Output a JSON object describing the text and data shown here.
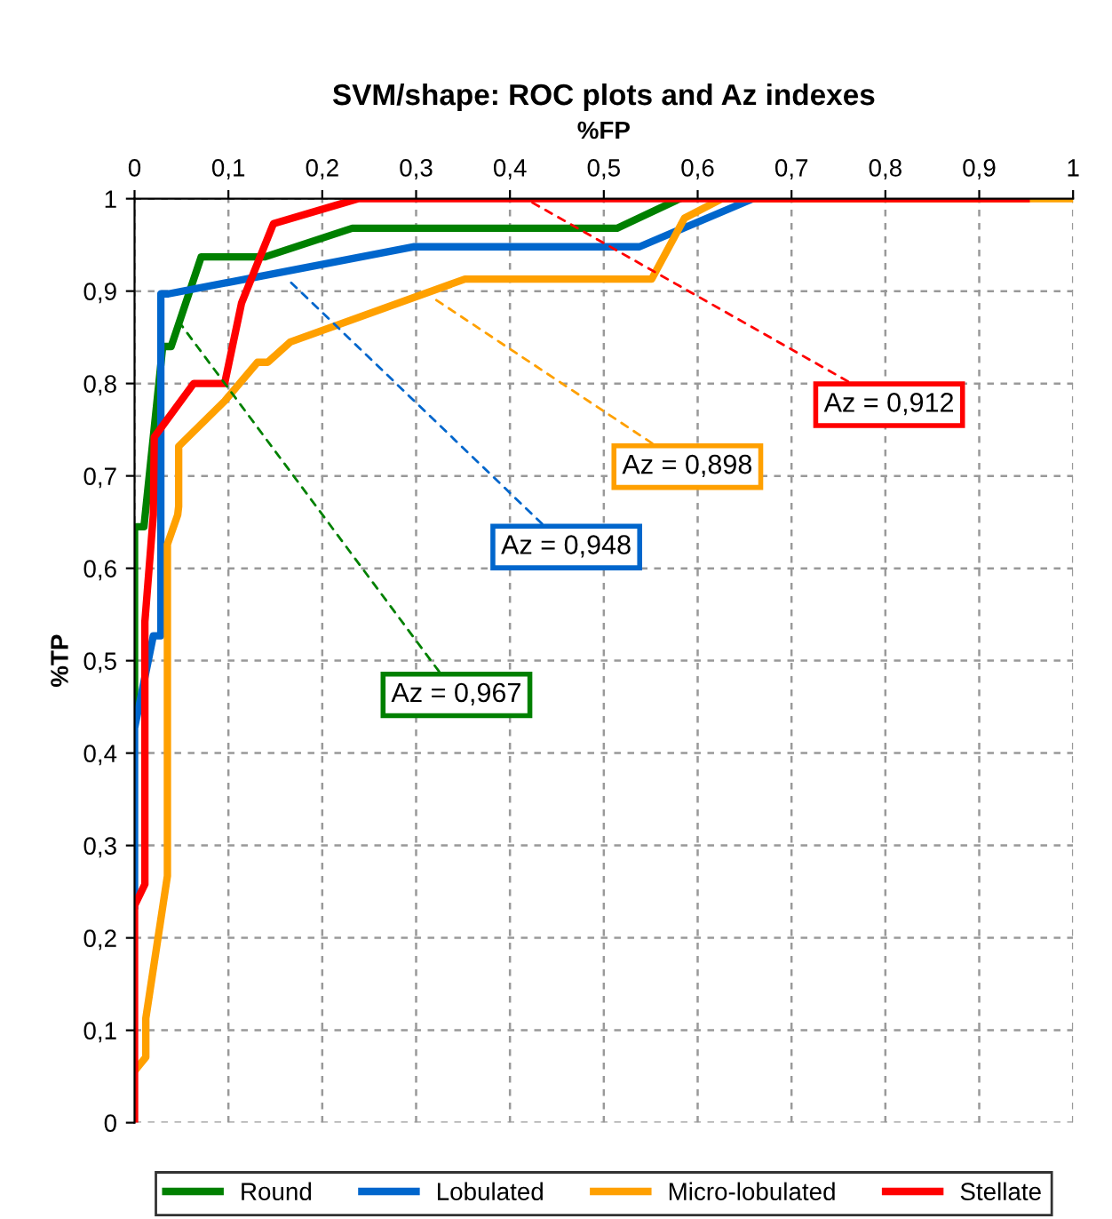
{
  "chart_data": {
    "type": "line",
    "title": "SVM/shape: ROC plots and Az indexes",
    "xlabel": "%FP",
    "ylabel": "%TP",
    "xlim": [
      0,
      1
    ],
    "ylim": [
      0,
      1
    ],
    "xticks": [
      0,
      {
        "value": 0.1,
        "label": "0,1"
      },
      {
        "value": 0.2,
        "label": "0,2"
      },
      {
        "value": 0.3,
        "label": "0,3"
      },
      {
        "value": 0.4,
        "label": "0,4"
      },
      {
        "value": 0.5,
        "label": "0,5"
      },
      {
        "value": 0.6,
        "label": "0,6"
      },
      {
        "value": 0.7,
        "label": "0,7"
      },
      {
        "value": 0.8,
        "label": "0,8"
      },
      {
        "value": 0.9,
        "label": "0,9"
      },
      1
    ],
    "yticks": [
      0,
      {
        "value": 0.1,
        "label": "0,1"
      },
      {
        "value": 0.2,
        "label": "0,2"
      },
      {
        "value": 0.3,
        "label": "0,3"
      },
      {
        "value": 0.4,
        "label": "0,4"
      },
      {
        "value": 0.5,
        "label": "0,5"
      },
      {
        "value": 0.6,
        "label": "0,6"
      },
      {
        "value": 0.7,
        "label": "0,7"
      },
      {
        "value": 0.8,
        "label": "0,8"
      },
      {
        "value": 0.9,
        "label": "0,9"
      },
      1
    ],
    "grid": true,
    "legend": "bottom",
    "marker": "none",
    "line_style": "solid",
    "series": [
      {
        "name": "Round",
        "color": "#008000",
        "x": [
          0,
          0,
          0.01,
          0.03,
          0.039,
          0.071,
          0.139,
          0.232,
          0.514,
          0.581
        ],
        "values": [
          0.45,
          0.645,
          0.645,
          0.84,
          0.84,
          0.937,
          0.937,
          0.968,
          0.968,
          1
        ]
      },
      {
        "name": "Lobulated",
        "color": "#0066cc",
        "x": [
          0,
          0,
          0.02,
          0.028,
          0.028,
          0.036,
          0.298,
          0.538,
          0.659
        ],
        "values": [
          0.235,
          0.427,
          0.527,
          0.527,
          0.897,
          0.897,
          0.948,
          0.948,
          1
        ]
      },
      {
        "name": "Micro-lobulated",
        "color": "#ffa000",
        "x": [
          0,
          0.012,
          0.012,
          0.035,
          0.035,
          0.046,
          0.047,
          0.047,
          0.096,
          0.131,
          0.142,
          0.166,
          0.352,
          0.551,
          0.586,
          0.626,
          1
        ],
        "values": [
          0.056,
          0.071,
          0.113,
          0.267,
          0.626,
          0.658,
          0.667,
          0.732,
          0.781,
          0.823,
          0.823,
          0.845,
          0.913,
          0.913,
          0.979,
          1,
          1
        ]
      },
      {
        "name": "Stellate",
        "color": "#ff0000",
        "x": [
          0,
          0,
          0.011,
          0.011,
          0.02,
          0.021,
          0.063,
          0.096,
          0.114,
          0.148,
          0.238,
          0.95
        ],
        "values": [
          0,
          0.235,
          0.258,
          0.542,
          0.658,
          0.742,
          0.8,
          0.8,
          0.887,
          0.973,
          1,
          1
        ]
      }
    ],
    "annotations": [
      {
        "text": "Az = 0,967",
        "x": 0.05,
        "y": 0.863
      },
      {
        "text": "Az = 0,948",
        "x": 0.165,
        "y": 0.911
      },
      {
        "text": "Az = 0,898",
        "x": 0.319,
        "y": 0.892
      },
      {
        "text": "Az = 0,912",
        "x": 0.42,
        "y": 0.998
      }
    ]
  }
}
